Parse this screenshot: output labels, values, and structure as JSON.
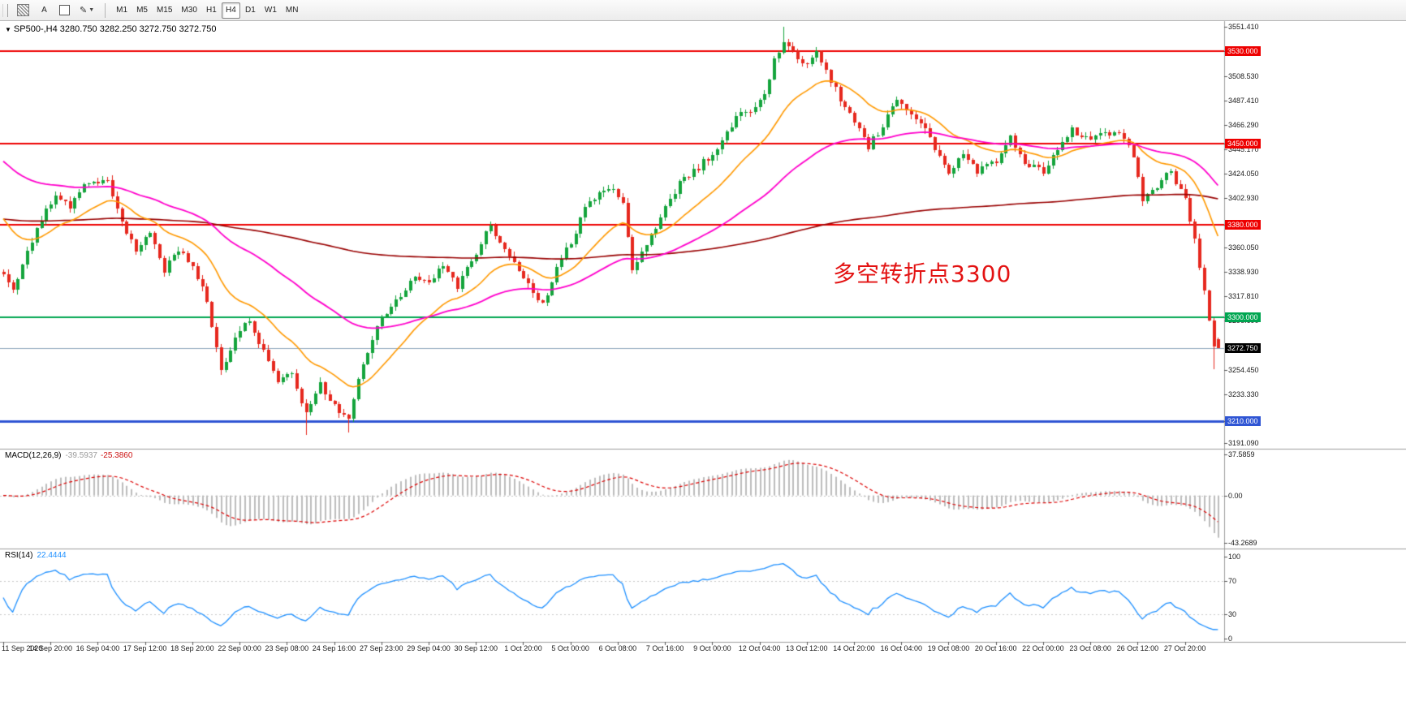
{
  "toolbar": {
    "tool_a_label": "A",
    "timeframes": [
      "M1",
      "M5",
      "M15",
      "M30",
      "H1",
      "H4",
      "D1",
      "W1",
      "MN"
    ],
    "active_timeframe": "H4"
  },
  "main_chart": {
    "symbol_line": "SP500-,H4 3280.750 3282.250 3272.750 3272.750",
    "annotation": {
      "text": "多空转折点3300",
      "color": "#e31212"
    }
  },
  "macd": {
    "name": "MACD(12,26,9)",
    "value_main": "-39.5937",
    "value_signal": "-25.3860"
  },
  "rsi": {
    "name": "RSI(14)",
    "value": "22.4444"
  },
  "chart_data": {
    "type": "candlestick",
    "symbol": "SP500-",
    "timeframe": "H4",
    "last_bar": {
      "open": 3280.75,
      "high": 3282.25,
      "low": 3272.75,
      "close": 3272.75
    },
    "price_scale": {
      "min": 3186,
      "max": 3556
    },
    "num_bars": 258,
    "close_anchors": [
      [
        0,
        3338
      ],
      [
        2,
        3324
      ],
      [
        5,
        3356
      ],
      [
        8,
        3386
      ],
      [
        11,
        3404
      ],
      [
        14,
        3396
      ],
      [
        17,
        3416
      ],
      [
        20,
        3413
      ],
      [
        22,
        3420
      ],
      [
        25,
        3382
      ],
      [
        28,
        3356
      ],
      [
        31,
        3371
      ],
      [
        34,
        3341
      ],
      [
        37,
        3359
      ],
      [
        40,
        3346
      ],
      [
        43,
        3312
      ],
      [
        46,
        3252
      ],
      [
        49,
        3284
      ],
      [
        52,
        3296
      ],
      [
        55,
        3270
      ],
      [
        58,
        3242
      ],
      [
        61,
        3252
      ],
      [
        64,
        3215
      ],
      [
        67,
        3242
      ],
      [
        70,
        3222
      ],
      [
        73,
        3210
      ],
      [
        76,
        3262
      ],
      [
        80,
        3298
      ],
      [
        84,
        3320
      ],
      [
        87,
        3336
      ],
      [
        90,
        3331
      ],
      [
        93,
        3346
      ],
      [
        96,
        3327
      ],
      [
        100,
        3356
      ],
      [
        103,
        3380
      ],
      [
        106,
        3360
      ],
      [
        110,
        3332
      ],
      [
        114,
        3312
      ],
      [
        117,
        3342
      ],
      [
        120,
        3366
      ],
      [
        123,
        3392
      ],
      [
        126,
        3406
      ],
      [
        129,
        3412
      ],
      [
        131,
        3396
      ],
      [
        133,
        3342
      ],
      [
        136,
        3362
      ],
      [
        140,
        3396
      ],
      [
        143,
        3416
      ],
      [
        146,
        3426
      ],
      [
        150,
        3441
      ],
      [
        153,
        3461
      ],
      [
        156,
        3476
      ],
      [
        159,
        3481
      ],
      [
        161,
        3492
      ],
      [
        163,
        3522
      ],
      [
        165,
        3540
      ],
      [
        168,
        3526
      ],
      [
        170,
        3516
      ],
      [
        172,
        3531
      ],
      [
        175,
        3502
      ],
      [
        178,
        3483
      ],
      [
        180,
        3471
      ],
      [
        183,
        3447
      ],
      [
        186,
        3466
      ],
      [
        189,
        3487
      ],
      [
        192,
        3478
      ],
      [
        195,
        3462
      ],
      [
        198,
        3440
      ],
      [
        200,
        3422
      ],
      [
        203,
        3441
      ],
      [
        206,
        3427
      ],
      [
        210,
        3436
      ],
      [
        213,
        3456
      ],
      [
        216,
        3432
      ],
      [
        220,
        3426
      ],
      [
        223,
        3446
      ],
      [
        226,
        3461
      ],
      [
        230,
        3451
      ],
      [
        233,
        3462
      ],
      [
        236,
        3456
      ],
      [
        239,
        3441
      ],
      [
        241,
        3402
      ],
      [
        244,
        3412
      ],
      [
        247,
        3426
      ],
      [
        250,
        3402
      ],
      [
        252,
        3366
      ],
      [
        254,
        3322
      ],
      [
        256,
        3272
      ],
      [
        257,
        3280.75
      ]
    ],
    "forced_extremes": {
      "peak_bar": 165,
      "peak_high": 3551.0,
      "low_bar_1": 64,
      "low_1": 3198,
      "low_bar_2": 73,
      "low_2": 3200,
      "pre_last_low_bar": 256,
      "pre_last_low": 3255
    },
    "price_ticks": [
      {
        "v": 3551.41,
        "t": "3551.410"
      },
      {
        "v": 3508.53,
        "t": "3508.530"
      },
      {
        "v": 3487.41,
        "t": "3487.410"
      },
      {
        "v": 3466.29,
        "t": "3466.290"
      },
      {
        "v": 3445.17,
        "t": "3445.170"
      },
      {
        "v": 3424.05,
        "t": "3424.050"
      },
      {
        "v": 3402.93,
        "t": "3402.930"
      },
      {
        "v": 3360.05,
        "t": "3360.050"
      },
      {
        "v": 3338.93,
        "t": "3338.930"
      },
      {
        "v": 3317.81,
        "t": "3317.810"
      },
      {
        "v": 3296.69,
        "t": "3296.690"
      },
      {
        "v": 3254.45,
        "t": "3254.450"
      },
      {
        "v": 3233.33,
        "t": "3233.330"
      },
      {
        "v": 3191.09,
        "t": "3191.090"
      }
    ],
    "hlines": [
      {
        "price": 3530.0,
        "text": "3530.000",
        "color": "#ee0000",
        "width": 2
      },
      {
        "price": 3450.0,
        "text": "3450.000",
        "color": "#ee0000",
        "width": 2
      },
      {
        "price": 3380.0,
        "text": "3380.000",
        "color": "#ee0000",
        "width": 2
      },
      {
        "price": 3300.0,
        "text": "3300.000",
        "color": "#00a651",
        "width": 2
      },
      {
        "price": 3210.0,
        "text": "3210.000",
        "color": "#2f55d4",
        "width": 3
      }
    ],
    "current_price": {
      "value": 3272.75,
      "text": "3272.750",
      "line_color": "#8fa8bd",
      "badge_color": "#000000"
    },
    "candle_colors": {
      "up": "#14a43c",
      "down": "#e6281e"
    },
    "moving_averages": [
      {
        "period": 300,
        "seed": 3385,
        "color": "#990000",
        "width": 1.6
      },
      {
        "period": 20,
        "seed": 3390,
        "color": "#ff9900",
        "width": 1.6
      },
      {
        "period": 60,
        "seed": 3438,
        "color": "#ff00cc",
        "width": 1.8
      }
    ],
    "macd_panel": {
      "params": [
        12,
        26,
        9
      ],
      "scale": {
        "min": -47,
        "max": 40.5
      },
      "ticks": [
        {
          "v": 37.5859,
          "t": "37.5859"
        },
        {
          "v": 0,
          "t": "0.00"
        },
        {
          "v": -43.2689,
          "t": "-43.2689"
        }
      ],
      "histogram_color": "#bdbdbd",
      "signal_color": "#dd0000"
    },
    "rsi_panel": {
      "period": 14,
      "ticks": [
        {
          "v": 100,
          "t": "100"
        },
        {
          "v": 70,
          "t": "70"
        },
        {
          "v": 30,
          "t": "30"
        },
        {
          "v": 0,
          "t": "0"
        }
      ],
      "levels": [
        70,
        30
      ],
      "line_color": "#1e90ff"
    },
    "time_labels": [
      [
        0,
        "11 Sep 2020"
      ],
      [
        10,
        "14 Sep 20:00"
      ],
      [
        20,
        "16 Sep 04:00"
      ],
      [
        30,
        "17 Sep 12:00"
      ],
      [
        40,
        "18 Sep 20:00"
      ],
      [
        50,
        "22 Sep 00:00"
      ],
      [
        60,
        "23 Sep 08:00"
      ],
      [
        70,
        "24 Sep 16:00"
      ],
      [
        80,
        "27 Sep 23:00"
      ],
      [
        90,
        "29 Sep 04:00"
      ],
      [
        100,
        "30 Sep 12:00"
      ],
      [
        110,
        "1 Oct 20:00"
      ],
      [
        120,
        "5 Oct 00:00"
      ],
      [
        130,
        "6 Oct 08:00"
      ],
      [
        140,
        "7 Oct 16:00"
      ],
      [
        150,
        "9 Oct 00:00"
      ],
      [
        160,
        "12 Oct 04:00"
      ],
      [
        170,
        "13 Oct 12:00"
      ],
      [
        180,
        "14 Oct 20:00"
      ],
      [
        190,
        "16 Oct 04:00"
      ],
      [
        200,
        "19 Oct 08:00"
      ],
      [
        210,
        "20 Oct 16:00"
      ],
      [
        220,
        "22 Oct 00:00"
      ],
      [
        230,
        "23 Oct 08:00"
      ],
      [
        240,
        "26 Oct 12:00"
      ],
      [
        250,
        "27 Oct 20:00"
      ]
    ]
  }
}
